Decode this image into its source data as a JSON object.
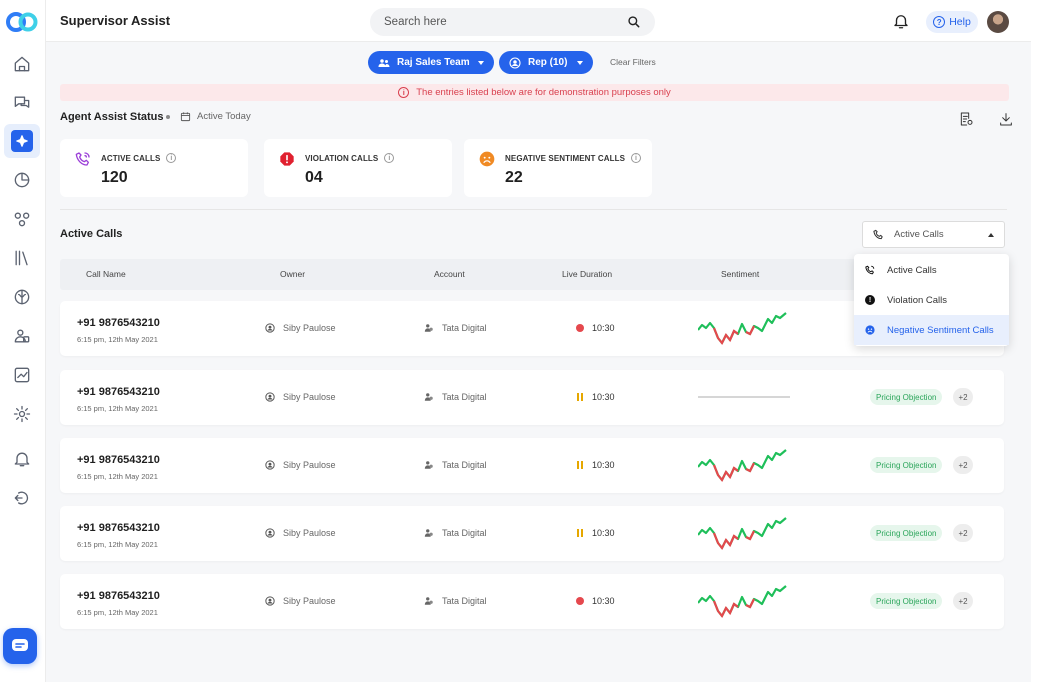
{
  "app": {
    "title": "Supervisor Assist"
  },
  "search": {
    "placeholder": "Search here"
  },
  "header": {
    "help_label": "Help"
  },
  "filters": {
    "team_label": "Raj Sales Team",
    "rep_label": "Rep (10)",
    "clear_label": "Clear Filters"
  },
  "banner": {
    "text": "The entries listed below are for demonstration purposes only"
  },
  "status": {
    "title": "Agent Assist Status",
    "date_label": "Active Today"
  },
  "cards": [
    {
      "label": "ACTIVE CALLS",
      "value": "120",
      "icon": "phone-icon",
      "color": "#9b3fd8"
    },
    {
      "label": "VIOLATION CALLS",
      "value": "04",
      "icon": "alert-icon",
      "color": "#e0202f"
    },
    {
      "label": "NEGATIVE SENTIMENT CALLS",
      "value": "22",
      "icon": "sad-face-icon",
      "color": "#f08a24"
    }
  ],
  "active_calls": {
    "title": "Active Calls",
    "select_value": "Active Calls",
    "columns": [
      "Call Name",
      "Owner",
      "Account",
      "Live Duration",
      "Sentiment"
    ],
    "dropdown": [
      {
        "label": "Active Calls",
        "icon": "phone-icon"
      },
      {
        "label": "Violation Calls",
        "icon": "alert-icon"
      },
      {
        "label": "Negative Sentiment Calls",
        "icon": "sad-face-icon",
        "selected": true
      }
    ],
    "rows": [
      {
        "phone": "+91 9876543210",
        "time": "6:15 pm, 12th May 2021",
        "owner": "Siby Paulose",
        "account": "Tata Digital",
        "duration": "10:30",
        "state": "recording",
        "sentiment": "wave",
        "tag": "",
        "more": ""
      },
      {
        "phone": "+91 9876543210",
        "time": "6:15 pm, 12th May 2021",
        "owner": "Siby Paulose",
        "account": "Tata Digital",
        "duration": "10:30",
        "state": "paused",
        "sentiment": "flat",
        "tag": "Pricing Objection",
        "more": "+2"
      },
      {
        "phone": "+91 9876543210",
        "time": "6:15 pm, 12th May 2021",
        "owner": "Siby Paulose",
        "account": "Tata Digital",
        "duration": "10:30",
        "state": "paused",
        "sentiment": "wave",
        "tag": "Pricing Objection",
        "more": "+2"
      },
      {
        "phone": "+91 9876543210",
        "time": "6:15 pm, 12th May 2021",
        "owner": "Siby Paulose",
        "account": "Tata Digital",
        "duration": "10:30",
        "state": "paused",
        "sentiment": "wave",
        "tag": "Pricing Objection",
        "more": "+2"
      },
      {
        "phone": "+91 9876543210",
        "time": "6:15 pm, 12th May 2021",
        "owner": "Siby Paulose",
        "account": "Tata Digital",
        "duration": "10:30",
        "state": "recording",
        "sentiment": "wave",
        "tag": "Pricing Objection",
        "more": "+2"
      }
    ]
  },
  "sidebar": {
    "items": [
      {
        "icon": "home-icon"
      },
      {
        "icon": "chat-bubbles-icon"
      },
      {
        "icon": "sparkle-icon",
        "active": true
      },
      {
        "icon": "pie-chart-icon"
      },
      {
        "icon": "network-icon"
      },
      {
        "icon": "library-icon"
      },
      {
        "icon": "brain-icon"
      },
      {
        "icon": "users-icon"
      },
      {
        "icon": "trend-chart-icon"
      },
      {
        "icon": "settings-icon"
      },
      {
        "icon": "notification-icon"
      },
      {
        "icon": "logout-icon"
      }
    ]
  },
  "colors": {
    "accent": "#2563eb",
    "positive": "#1fbf5a",
    "negative": "#e5484d",
    "banner_text": "#d9404f"
  }
}
